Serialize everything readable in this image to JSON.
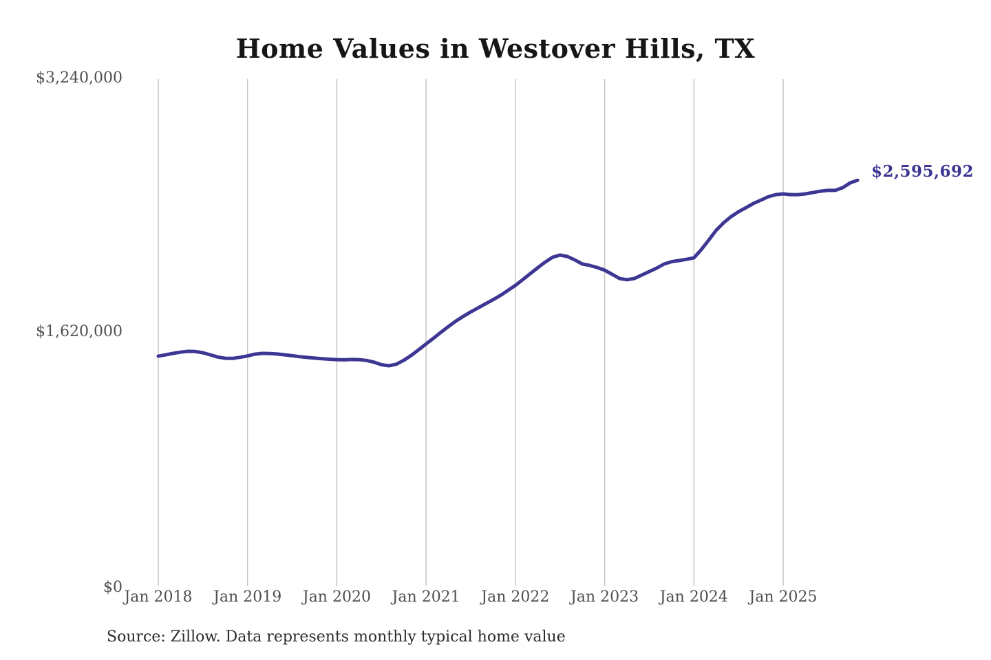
{
  "title": "Home Values in Westover Hills, TX",
  "source_note": "Source: Zillow. Data represents monthly typical home value",
  "colors": {
    "line": "#3d3693",
    "annotation": "#3d3693",
    "grid": "#c6c6c6",
    "axis_text": "#4f4f4f",
    "title_text": "#161616",
    "source_text": "#2c2c2c",
    "background": "#ffffff"
  },
  "chart_data": {
    "type": "line",
    "title": "Home Values in Westover Hills, TX",
    "xlabel": "",
    "ylabel": "",
    "ylim": [
      0,
      3240000
    ],
    "grid": "vertical-only",
    "legend": "none",
    "end_label": "$2,595,692",
    "end_value": 2595692,
    "y_ticks": [
      {
        "value": 0,
        "label": "$0"
      },
      {
        "value": 1620000,
        "label": "$1,620,000"
      },
      {
        "value": 3240000,
        "label": "$3,240,000"
      }
    ],
    "x_tick_labels": [
      "Jan 2018",
      "Jan 2019",
      "Jan 2020",
      "Jan 2021",
      "Jan 2022",
      "Jan 2023",
      "Jan 2024",
      "Jan 2025"
    ],
    "months": [
      "Jan 2018",
      "Feb 2018",
      "Mar 2018",
      "Apr 2018",
      "May 2018",
      "Jun 2018",
      "Jul 2018",
      "Aug 2018",
      "Sep 2018",
      "Oct 2018",
      "Nov 2018",
      "Dec 2018",
      "Jan 2019",
      "Feb 2019",
      "Mar 2019",
      "Apr 2019",
      "May 2019",
      "Jun 2019",
      "Jul 2019",
      "Aug 2019",
      "Sep 2019",
      "Oct 2019",
      "Nov 2019",
      "Dec 2019",
      "Jan 2020",
      "Feb 2020",
      "Mar 2020",
      "Apr 2020",
      "May 2020",
      "Jun 2020",
      "Jul 2020",
      "Aug 2020",
      "Sep 2020",
      "Oct 2020",
      "Nov 2020",
      "Dec 2020",
      "Jan 2021",
      "Feb 2021",
      "Mar 2021",
      "Apr 2021",
      "May 2021",
      "Jun 2021",
      "Jul 2021",
      "Aug 2021",
      "Sep 2021",
      "Oct 2021",
      "Nov 2021",
      "Dec 2021",
      "Jan 2022",
      "Feb 2022",
      "Mar 2022",
      "Apr 2022",
      "May 2022",
      "Jun 2022",
      "Jul 2022",
      "Aug 2022",
      "Sep 2022",
      "Oct 2022",
      "Nov 2022",
      "Dec 2022",
      "Jan 2023",
      "Feb 2023",
      "Mar 2023",
      "Apr 2023",
      "May 2023",
      "Jun 2023",
      "Jul 2023",
      "Aug 2023",
      "Sep 2023",
      "Oct 2023",
      "Nov 2023",
      "Dec 2023",
      "Jan 2024",
      "Feb 2024",
      "Mar 2024",
      "Apr 2024",
      "May 2024",
      "Jun 2024",
      "Jul 2024",
      "Aug 2024",
      "Sep 2024",
      "Oct 2024",
      "Nov 2024",
      "Dec 2024",
      "Jan 2025",
      "Feb 2025",
      "Mar 2025",
      "Apr 2025",
      "May 2025",
      "Jun 2025",
      "Jul 2025",
      "Aug 2025",
      "Sep 2025",
      "Oct 2025",
      "Nov 2025"
    ],
    "series": [
      {
        "name": "Typical home value",
        "values": [
          1475000,
          1484000,
          1493000,
          1501000,
          1506000,
          1505000,
          1497000,
          1484000,
          1470000,
          1462000,
          1461000,
          1468000,
          1477000,
          1488000,
          1493000,
          1492000,
          1489000,
          1484000,
          1478000,
          1472000,
          1467000,
          1463000,
          1459000,
          1456000,
          1453000,
          1452000,
          1454000,
          1453000,
          1448000,
          1437000,
          1421000,
          1414000,
          1424000,
          1449000,
          1480000,
          1516000,
          1553000,
          1590000,
          1628000,
          1664000,
          1699000,
          1729000,
          1757000,
          1783000,
          1809000,
          1835000,
          1862000,
          1894000,
          1926000,
          1963000,
          2001000,
          2038000,
          2074000,
          2105000,
          2119000,
          2110000,
          2088000,
          2062000,
          2053000,
          2040000,
          2023000,
          1997000,
          1970000,
          1962000,
          1970000,
          1992000,
          2014000,
          2036000,
          2062000,
          2077000,
          2084000,
          2092000,
          2101000,
          2154000,
          2215000,
          2277000,
          2325000,
          2364000,
          2395000,
          2421000,
          2448000,
          2469000,
          2491000,
          2504000,
          2509000,
          2504000,
          2504000,
          2509000,
          2517000,
          2526000,
          2531000,
          2531000,
          2548000,
          2579000,
          2595692
        ]
      }
    ]
  }
}
